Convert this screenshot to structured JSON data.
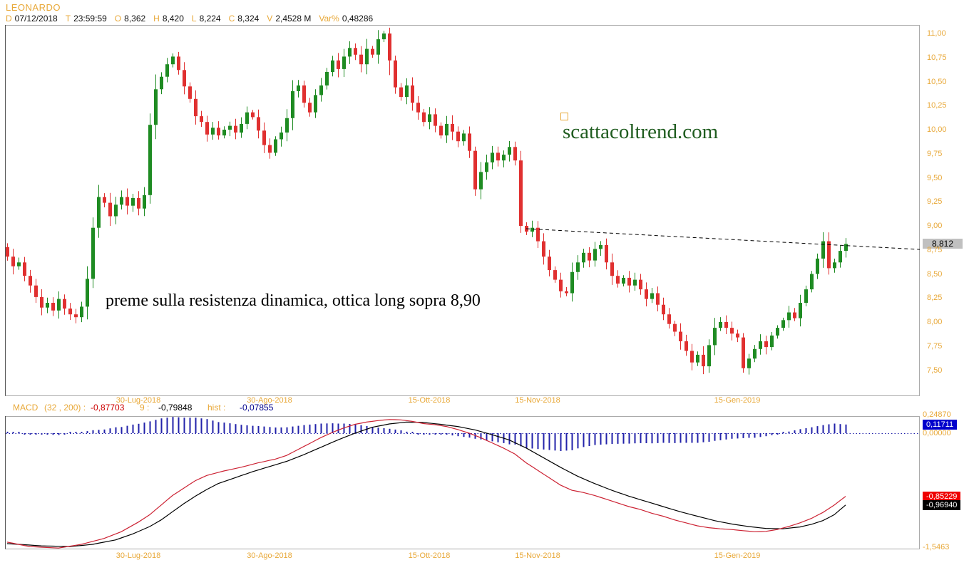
{
  "header": {
    "symbol": "LEONARDO",
    "fields": [
      {
        "label": "D",
        "value": "07/12/2018"
      },
      {
        "label": "T",
        "value": "23:59:59"
      },
      {
        "label": "O",
        "value": "8,362"
      },
      {
        "label": "H",
        "value": "8,420"
      },
      {
        "label": "L",
        "value": "8,224"
      },
      {
        "label": "C",
        "value": "8,324"
      },
      {
        "label": "V",
        "value": "2,4528 M"
      },
      {
        "label": "Var%",
        "value": "0,48286"
      }
    ]
  },
  "watermark": {
    "text": "scattacoltrend.com"
  },
  "annotation": {
    "text": "preme sulla resistenza dinamica, ottica long sopra 8,90"
  },
  "last_price_label": "8,812",
  "macd_row": {
    "name": "MACD",
    "params": "(32 , 200) :",
    "macd_value": "-0,87703",
    "signal_label": "9 :",
    "signal_value": "-0,79848",
    "hist_label": "hist :",
    "hist_value": "-0,07855"
  },
  "macd_axis": {
    "top": "0,24870",
    "zero": "0,00000",
    "bottom": "-1,5463",
    "hist_badge": "0,11711",
    "macd_badge": "-0,85229",
    "signal_badge": "-0,96940"
  },
  "colors": {
    "up": "#1E8B22",
    "down": "#E03030",
    "macd_line": "#CC2233",
    "signal_line": "#000000",
    "hist": "#2222AA",
    "axis_text": "#E8A838",
    "watermark": "#1F5C1F",
    "badge_gray": "#C0C0C0",
    "badge_blue": "#0000CC",
    "badge_red": "#EE0000",
    "badge_black": "#000000"
  },
  "chart_data": [
    {
      "type": "candlestick",
      "title": "LEONARDO daily candles",
      "ylim": [
        7.24,
        11.09
      ],
      "grid": false,
      "y_ticks": [
        {
          "label": "11,00",
          "value": 11.0
        },
        {
          "label": "10,75",
          "value": 10.75
        },
        {
          "label": "10,50",
          "value": 10.5
        },
        {
          "label": "10,25",
          "value": 10.25
        },
        {
          "label": "10,00",
          "value": 10.0
        },
        {
          "label": "9,75",
          "value": 9.75
        },
        {
          "label": "9,50",
          "value": 9.5
        },
        {
          "label": "9,25",
          "value": 9.25
        },
        {
          "label": "9,00",
          "value": 9.0
        },
        {
          "label": "8,75",
          "value": 8.75
        },
        {
          "label": "8,50",
          "value": 8.5
        },
        {
          "label": "8,25",
          "value": 8.25
        },
        {
          "label": "8,00",
          "value": 8.0
        },
        {
          "label": "7,75",
          "value": 7.75
        },
        {
          "label": "7,50",
          "value": 7.5
        }
      ],
      "x_ticks": [
        {
          "label": "30-Lug-2018",
          "index": 23
        },
        {
          "label": "30-Ago-2018",
          "index": 46
        },
        {
          "label": "15-Ott-2018",
          "index": 74
        },
        {
          "label": "15-Nov-2018",
          "index": 93
        },
        {
          "label": "15-Gen-2019",
          "index": 128
        }
      ],
      "first_open": 8.78,
      "closes": [
        8.68,
        8.58,
        8.62,
        8.48,
        8.38,
        8.26,
        8.15,
        8.2,
        8.12,
        8.24,
        8.14,
        8.08,
        8.05,
        8.16,
        8.45,
        8.98,
        9.3,
        9.24,
        9.1,
        9.22,
        9.3,
        9.21,
        9.29,
        9.18,
        9.32,
        10.05,
        10.42,
        10.55,
        10.68,
        10.76,
        10.62,
        10.45,
        10.32,
        10.14,
        10.08,
        9.95,
        10.02,
        9.94,
        10.0,
        10.04,
        9.97,
        10.06,
        10.18,
        10.13,
        9.99,
        9.84,
        9.76,
        9.9,
        9.97,
        10.12,
        10.4,
        10.46,
        10.28,
        10.18,
        10.36,
        10.46,
        10.6,
        10.72,
        10.63,
        10.76,
        10.85,
        10.78,
        10.68,
        10.84,
        10.78,
        10.94,
        11.0,
        10.72,
        10.44,
        10.34,
        10.46,
        10.28,
        10.18,
        10.08,
        10.16,
        10.04,
        9.94,
        10.06,
        9.98,
        9.88,
        9.96,
        9.78,
        9.38,
        9.56,
        9.66,
        9.76,
        9.68,
        9.74,
        9.82,
        9.68,
        9.0,
        8.94,
        8.98,
        8.84,
        8.68,
        8.54,
        8.44,
        8.32,
        8.3,
        8.52,
        8.62,
        8.72,
        8.64,
        8.76,
        8.8,
        8.62,
        8.48,
        8.4,
        8.46,
        8.38,
        8.44,
        8.34,
        8.24,
        8.3,
        8.18,
        8.08,
        7.98,
        7.9,
        7.8,
        7.7,
        7.58,
        7.66,
        7.54,
        7.76,
        7.94,
        8.0,
        7.94,
        7.88,
        7.84,
        7.52,
        7.62,
        7.72,
        7.8,
        7.74,
        7.86,
        7.94,
        8.02,
        8.1,
        8.04,
        8.2,
        8.34,
        8.5,
        8.66,
        8.84,
        8.56,
        8.62,
        8.74,
        8.812
      ],
      "last_close": 8.812,
      "trendline": {
        "style": "dashed",
        "from_index": 91,
        "from_price": 8.97,
        "to_price": 8.755
      }
    },
    {
      "type": "macd",
      "title": "MACD (32,200) with signal 9 and histogram",
      "ylim": [
        -1.558,
        0.26
      ],
      "macd_anchors": [
        [
          0,
          -1.47
        ],
        [
          4,
          -1.53
        ],
        [
          9,
          -1.55
        ],
        [
          13,
          -1.5
        ],
        [
          17,
          -1.42
        ],
        [
          20,
          -1.33
        ],
        [
          23,
          -1.2
        ],
        [
          25,
          -1.1
        ],
        [
          27,
          -0.97
        ],
        [
          29,
          -0.84
        ],
        [
          31,
          -0.74
        ],
        [
          33,
          -0.64
        ],
        [
          35,
          -0.57
        ],
        [
          38,
          -0.51
        ],
        [
          41,
          -0.46
        ],
        [
          44,
          -0.4
        ],
        [
          47,
          -0.35
        ],
        [
          49,
          -0.3
        ],
        [
          51,
          -0.22
        ],
        [
          53,
          -0.14
        ],
        [
          55,
          -0.06
        ],
        [
          57,
          0.01
        ],
        [
          59,
          0.07
        ],
        [
          61,
          0.12
        ],
        [
          63,
          0.15
        ],
        [
          65,
          0.17
        ],
        [
          67,
          0.185
        ],
        [
          69,
          0.18
        ],
        [
          71,
          0.16
        ],
        [
          73,
          0.13
        ],
        [
          75,
          0.115
        ],
        [
          77,
          0.09
        ],
        [
          79,
          0.05
        ],
        [
          81,
          0.0
        ],
        [
          83,
          -0.06
        ],
        [
          85,
          -0.13
        ],
        [
          87,
          -0.2
        ],
        [
          89,
          -0.28
        ],
        [
          91,
          -0.4
        ],
        [
          93,
          -0.5
        ],
        [
          95,
          -0.6
        ],
        [
          97,
          -0.7
        ],
        [
          99,
          -0.77
        ],
        [
          101,
          -0.8
        ],
        [
          103,
          -0.84
        ],
        [
          105,
          -0.89
        ],
        [
          107,
          -0.94
        ],
        [
          109,
          -0.99
        ],
        [
          111,
          -1.03
        ],
        [
          113,
          -1.08
        ],
        [
          115,
          -1.12
        ],
        [
          117,
          -1.17
        ],
        [
          119,
          -1.21
        ],
        [
          121,
          -1.25
        ],
        [
          123,
          -1.275
        ],
        [
          125,
          -1.29
        ],
        [
          127,
          -1.3
        ],
        [
          129,
          -1.315
        ],
        [
          131,
          -1.33
        ],
        [
          133,
          -1.325
        ],
        [
          135,
          -1.3
        ],
        [
          137,
          -1.26
        ],
        [
          139,
          -1.21
        ],
        [
          141,
          -1.15
        ],
        [
          143,
          -1.07
        ],
        [
          145,
          -0.97
        ],
        [
          147,
          -0.852
        ]
      ],
      "signal_anchors": [
        [
          0,
          -1.49
        ],
        [
          6,
          -1.52
        ],
        [
          11,
          -1.53
        ],
        [
          15,
          -1.5
        ],
        [
          19,
          -1.44
        ],
        [
          22,
          -1.36
        ],
        [
          25,
          -1.26
        ],
        [
          27,
          -1.17
        ],
        [
          29,
          -1.06
        ],
        [
          31,
          -0.95
        ],
        [
          33,
          -0.85
        ],
        [
          35,
          -0.76
        ],
        [
          37,
          -0.68
        ],
        [
          40,
          -0.6
        ],
        [
          43,
          -0.52
        ],
        [
          46,
          -0.45
        ],
        [
          49,
          -0.38
        ],
        [
          52,
          -0.29
        ],
        [
          55,
          -0.19
        ],
        [
          58,
          -0.09
        ],
        [
          61,
          0.0
        ],
        [
          64,
          0.08
        ],
        [
          67,
          0.125
        ],
        [
          70,
          0.15
        ],
        [
          73,
          0.145
        ],
        [
          76,
          0.12
        ],
        [
          79,
          0.09
        ],
        [
          82,
          0.045
        ],
        [
          85,
          -0.02
        ],
        [
          88,
          -0.09
        ],
        [
          91,
          -0.2
        ],
        [
          94,
          -0.33
        ],
        [
          97,
          -0.46
        ],
        [
          100,
          -0.58
        ],
        [
          103,
          -0.68
        ],
        [
          106,
          -0.77
        ],
        [
          109,
          -0.85
        ],
        [
          112,
          -0.92
        ],
        [
          115,
          -0.99
        ],
        [
          118,
          -1.06
        ],
        [
          121,
          -1.12
        ],
        [
          124,
          -1.18
        ],
        [
          127,
          -1.225
        ],
        [
          130,
          -1.26
        ],
        [
          133,
          -1.285
        ],
        [
          136,
          -1.29
        ],
        [
          139,
          -1.265
        ],
        [
          141,
          -1.23
        ],
        [
          143,
          -1.18
        ],
        [
          145,
          -1.1
        ],
        [
          147,
          -0.969
        ]
      ],
      "last_values": {
        "macd": -0.85229,
        "signal": -0.9694,
        "hist": 0.11711
      }
    }
  ]
}
